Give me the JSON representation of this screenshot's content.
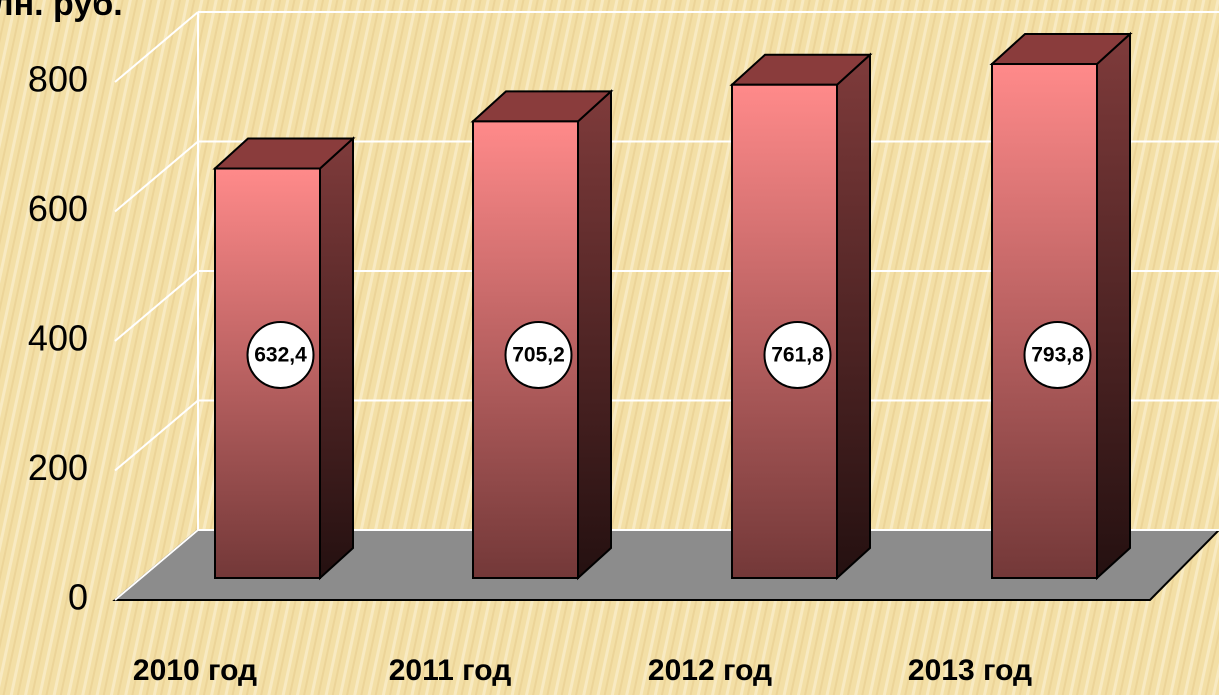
{
  "chart_data": {
    "type": "bar3d",
    "title": "лн. руб.",
    "categories": [
      "2010 год",
      "2011 год",
      "2012 год",
      "2013 год"
    ],
    "values": [
      632.4,
      705.2,
      761.8,
      793.8
    ],
    "value_labels": [
      "632,4",
      "705,2",
      "761,8",
      "793,8"
    ],
    "color": "#ff8a8a",
    "ylim": [
      0,
      800
    ],
    "yticks": [
      0,
      200,
      400,
      600,
      800
    ],
    "grid": true
  }
}
